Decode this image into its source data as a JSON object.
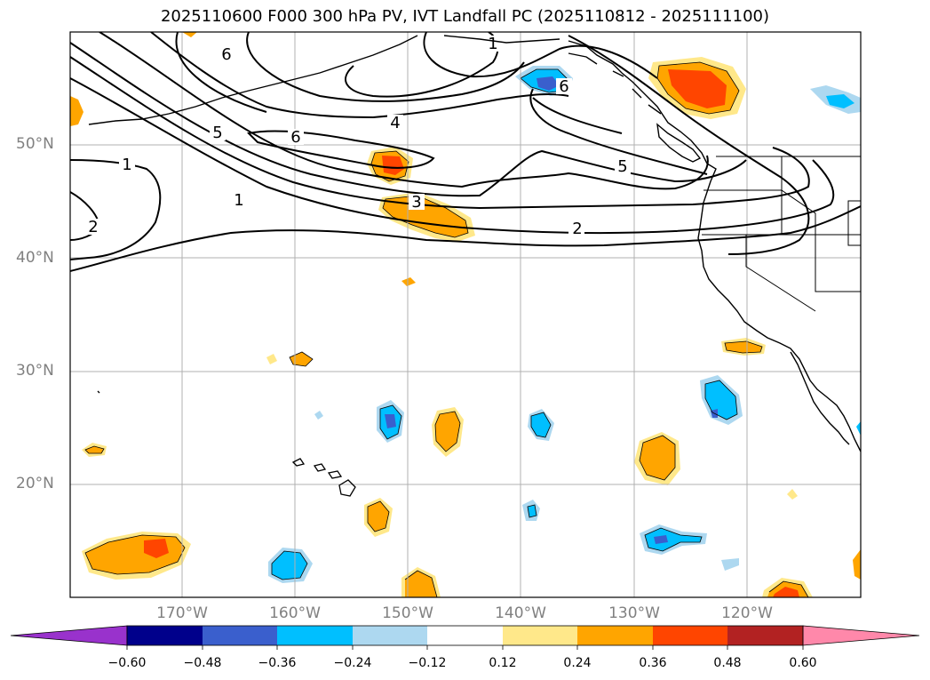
{
  "title": "2025110600 F000 300 hPa PV, IVT Landfall PC (2025110812 - 2025111100)",
  "latitude_labels": [
    "50°N",
    "40°N",
    "30°N",
    "20°N"
  ],
  "longitude_labels": [
    "170°W",
    "160°W",
    "150°W",
    "140°W",
    "130°W",
    "120°W"
  ],
  "contour_labels": [
    "1",
    "1",
    "1",
    "2",
    "2",
    "3",
    "4",
    "5",
    "5",
    "6",
    "6",
    "6"
  ],
  "colorbar": {
    "tick_labels": [
      "−0.60",
      "−0.48",
      "−0.36",
      "−0.24",
      "−0.12",
      "0.12",
      "0.24",
      "0.36",
      "0.48",
      "0.60"
    ],
    "colors": [
      "#9932cc",
      "#00008b",
      "#3a5fcd",
      "#00bfff",
      "#add8f0",
      "#ffffff",
      "#ffe88a",
      "#ffa500",
      "#ff4500",
      "#b22222",
      "#ff88aa"
    ]
  }
}
